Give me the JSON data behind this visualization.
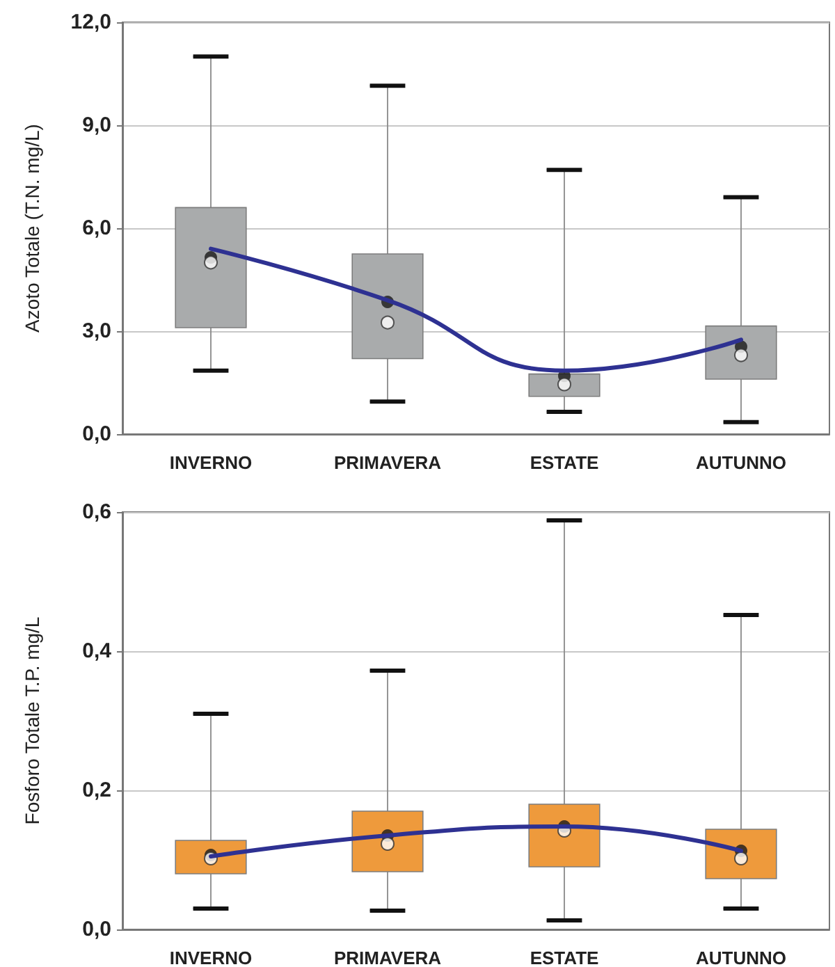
{
  "chart_data": [
    {
      "type": "box",
      "ylabel": "Azoto Totale (T.N. mg/L)",
      "categories": [
        "INVERNO",
        "PRIMAVERA",
        "ESTATE",
        "AUTUNNO"
      ],
      "ylim": [
        0,
        12
      ],
      "yticks": [
        {
          "value": 0,
          "label": "0,0"
        },
        {
          "value": 3,
          "label": "3,0"
        },
        {
          "value": 6,
          "label": "6,0"
        },
        {
          "value": 9,
          "label": "9,0"
        },
        {
          "value": 12,
          "label": "12,0"
        }
      ],
      "grid": "y",
      "marker": "none",
      "series": [
        {
          "type": "box",
          "color": "#a9abac",
          "boxes": [
            {
              "low": 1.85,
              "q1": 3.1,
              "median": 5.0,
              "q3": 6.6,
              "high": 11.0,
              "mean": 5.15
            },
            {
              "low": 0.95,
              "q1": 2.2,
              "median": 3.25,
              "q3": 5.25,
              "high": 10.15,
              "mean": 3.85
            },
            {
              "low": 0.65,
              "q1": 1.1,
              "median": 1.45,
              "q3": 1.75,
              "high": 7.7,
              "mean": 1.7
            },
            {
              "low": 0.35,
              "q1": 1.6,
              "median": 2.3,
              "q3": 3.15,
              "high": 6.9,
              "mean": 2.55
            }
          ]
        },
        {
          "type": "line",
          "color": "#2e3192",
          "values": [
            5.4,
            3.9,
            1.85,
            2.75
          ]
        }
      ]
    },
    {
      "type": "box",
      "ylabel": "Fosforo Totale T.P. mg/L",
      "categories": [
        "INVERNO",
        "PRIMAVERA",
        "ESTATE",
        "AUTUNNO"
      ],
      "ylim": [
        0,
        0.6
      ],
      "yticks": [
        {
          "value": 0,
          "label": "0,0"
        },
        {
          "value": 0.2,
          "label": "0,2"
        },
        {
          "value": 0.4,
          "label": "0,4"
        },
        {
          "value": 0.6,
          "label": "0,6"
        }
      ],
      "grid": "y",
      "marker": "none",
      "series": [
        {
          "type": "box",
          "color": "#ee9a3c",
          "boxes": [
            {
              "low": 0.03,
              "q1": 0.08,
              "median": 0.102,
              "q3": 0.128,
              "high": 0.31,
              "mean": 0.107
            },
            {
              "low": 0.027,
              "q1": 0.083,
              "median": 0.123,
              "q3": 0.17,
              "high": 0.372,
              "mean": 0.135
            },
            {
              "low": 0.013,
              "q1": 0.09,
              "median": 0.142,
              "q3": 0.18,
              "high": 0.588,
              "mean": 0.148
            },
            {
              "low": 0.03,
              "q1": 0.073,
              "median": 0.102,
              "q3": 0.144,
              "high": 0.452,
              "mean": 0.113
            }
          ]
        },
        {
          "type": "line",
          "color": "#2e3192",
          "values": [
            0.105,
            0.135,
            0.148,
            0.113
          ]
        }
      ]
    }
  ]
}
